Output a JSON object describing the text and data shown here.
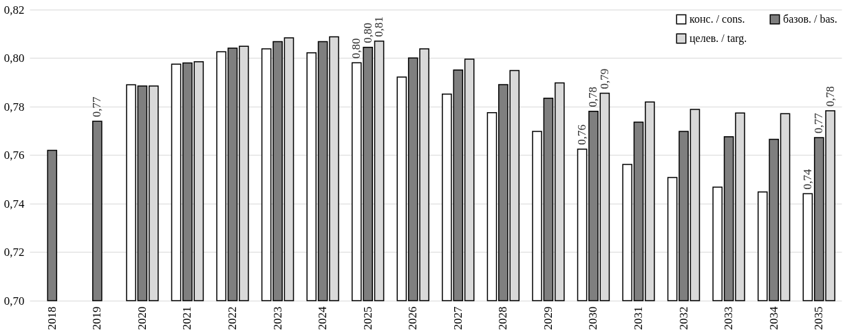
{
  "chart_data": {
    "type": "bar",
    "categories": [
      "2018",
      "2019",
      "2020",
      "2021",
      "2022",
      "2023",
      "2024",
      "2025",
      "2026",
      "2027",
      "2028",
      "2029",
      "2030",
      "2031",
      "2032",
      "2033",
      "2034",
      "2035"
    ],
    "series": [
      {
        "name": "конс. / cons.",
        "color": "#ffffff",
        "values": [
          null,
          null,
          0.789,
          0.7975,
          0.8026,
          0.8038,
          0.8022,
          0.7981,
          0.7922,
          0.7852,
          0.7775,
          0.7698,
          0.7625,
          0.7562,
          0.7508,
          0.7468,
          0.7448,
          0.7441
        ],
        "value_labels": [
          null,
          null,
          null,
          null,
          null,
          null,
          null,
          "0,80",
          null,
          null,
          null,
          null,
          "0,76",
          null,
          null,
          null,
          null,
          "0,74"
        ]
      },
      {
        "name": "базов. / bas.",
        "color": "#7f7f7f",
        "values": [
          0.762,
          0.774,
          0.7885,
          0.798,
          0.8041,
          0.8068,
          0.8068,
          0.8045,
          0.8001,
          0.7951,
          0.7891,
          0.7835,
          0.7781,
          0.7736,
          0.7698,
          0.7676,
          0.7665,
          0.7672
        ],
        "value_labels": [
          null,
          "0,77",
          null,
          null,
          null,
          null,
          null,
          "0,80",
          null,
          null,
          null,
          null,
          "0,78",
          null,
          null,
          null,
          null,
          "0,77"
        ]
      },
      {
        "name": "целев. / targ.",
        "color": "#d9d9d9",
        "values": [
          null,
          null,
          0.7885,
          0.7985,
          0.8049,
          0.8084,
          0.8088,
          0.807,
          0.8038,
          0.7996,
          0.7949,
          0.7898,
          0.7855,
          0.7819,
          0.7789,
          0.7774,
          0.7771,
          0.7783
        ],
        "value_labels": [
          null,
          null,
          null,
          null,
          null,
          null,
          null,
          "0,81",
          null,
          null,
          null,
          null,
          "0,79",
          null,
          null,
          null,
          null,
          "0,78"
        ]
      }
    ],
    "ylim": [
      0.7,
      0.82
    ],
    "yticks": [
      {
        "value": 0.7,
        "label": "0,70"
      },
      {
        "value": 0.72,
        "label": "0,72"
      },
      {
        "value": 0.74,
        "label": "0,74"
      },
      {
        "value": 0.76,
        "label": "0,76"
      },
      {
        "value": 0.78,
        "label": "0,78"
      },
      {
        "value": 0.8,
        "label": "0,80"
      },
      {
        "value": 0.82,
        "label": "0,82"
      }
    ],
    "grid": "y",
    "legend": "top right"
  }
}
